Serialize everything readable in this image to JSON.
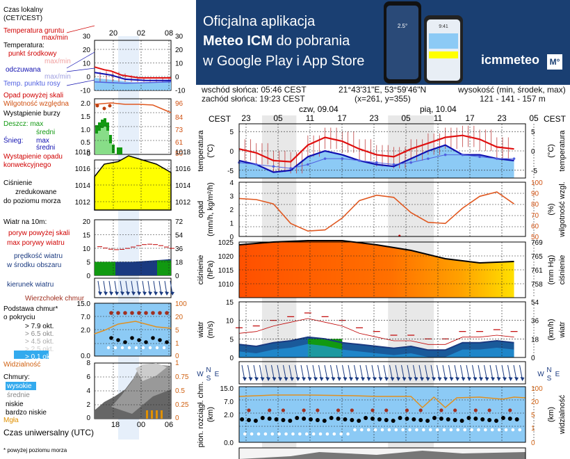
{
  "legend": {
    "local_time_label": "Czas lokalny",
    "local_time_zone": "(CET/CEST)",
    "local_time_ticks": [
      "20",
      "02",
      "08"
    ],
    "soil_temp_label": "Temperatura gruntu",
    "soil_temp_minmax": "max/min",
    "temperature_label": "Temperatura:",
    "temp_mid_label": "punkt środkowy",
    "temp_mid_minmax": "max/min",
    "feels_label": "odczuwana",
    "feels_minmax": "max/min",
    "dew_label": "Temp. punktu rosy",
    "temp_ticks_left": [
      "30",
      "20",
      "10",
      "0",
      "-10"
    ],
    "temp_ticks_right": [
      "30",
      "20",
      "10",
      "0",
      "-10"
    ],
    "precip_above_label": "Opad powyżej skali",
    "humidity_label": "Wilgotność względna",
    "storm_label": "Wystąpienie burzy",
    "rain_label": "Deszcz: max",
    "rain_mid": "średni",
    "snow_label": "Śnieg:",
    "snow_max": "max",
    "snow_mid": "średni",
    "precip_occur_1": "Wystąpienie opadu",
    "precip_occur_2": "konwekcyjnego",
    "precip_ticks_left": [
      "2.0",
      "1.5",
      "1.0",
      "0.5",
      "0"
    ],
    "precip_ticks_right": [
      "96",
      "84",
      "73",
      "61",
      "50"
    ],
    "pressure_1": "Ciśnienie",
    "pressure_2": "zredukowane",
    "pressure_3": "do poziomu morza",
    "pressure_ticks_left": [
      "1018",
      "1016",
      "1014",
      "1012"
    ],
    "pressure_ticks_right": [
      "1018",
      "1016",
      "1014",
      "1012"
    ],
    "wind_title": "Wiatr na 10m:",
    "gust_above_label": "poryw powyżej skali",
    "gust_max_label": "max porywy wiatru",
    "wind_speed_1": "prędkość wiatru",
    "wind_speed_2": "w środku obszaru",
    "wind_ticks_left": [
      "20",
      "15",
      "10",
      "5",
      "0"
    ],
    "wind_ticks_right": [
      "72",
      "54",
      "36",
      "18",
      "0"
    ],
    "wind_dir_label": "kierunek wiatru",
    "cloud_top_label": "Wierzchołek chmur",
    "cloud_base_1": "Podstawa chmur*",
    "cloud_base_2": "o pokryciu",
    "okt_labels": [
      "> 7.9 okt.",
      "> 6.5 okt.",
      "> 4.5 okt.",
      "> 2.5 okt.",
      "> 0.1 okt."
    ],
    "visibility_label": "Widzialność",
    "cloud_ticks_left": [
      "15.0",
      "7.0",
      "2.0",
      "0.0"
    ],
    "cloud_ticks_right": [
      "100",
      "20",
      "5",
      "1",
      "0"
    ],
    "clouds_label": "Chmury:",
    "cloud_high": "wysokie",
    "cloud_mid": "średnie",
    "cloud_low": "niskie",
    "cloud_vlow": "bardzo niskie",
    "fog_label": "Mgła",
    "cover_ticks_left": [
      "8",
      "6",
      "4",
      "2",
      "0"
    ],
    "cover_ticks_right": [
      "1",
      "0.75",
      "0.5",
      "0.25",
      "0"
    ],
    "utc_ticks": [
      "18",
      "00",
      "06"
    ],
    "utc_label": "Czas uniwersalny (UTC)",
    "footnote": "* powyżej poziomu morza"
  },
  "banner": {
    "line1": "Oficjalna aplikacja",
    "line2_bold": "Meteo ICM",
    "line2_rest": " do pobrania",
    "line3": "w Google Play i App Store",
    "logo_text": "icmmeteo",
    "logo_badge": "M°",
    "phone_time": "9:41",
    "phone_temp": "2.5°"
  },
  "info": {
    "sunrise": "wschód słońca: 05:46 CEST",
    "sunset": "zachód słońca: 19:23 CEST",
    "coords": "21°43'31\"E, 53°59'46\"N",
    "grid": "(x=261, y=355)",
    "elev_label": "wysokość (min, środek, max)",
    "elev_values": "121 - 141 - 157 m"
  },
  "main": {
    "tz": "CEST",
    "day1": "czw, 09.04",
    "day2": "pią, 10.04",
    "hour_ticks": [
      "23",
      "05",
      "11",
      "17",
      "23",
      "05",
      "11",
      "17",
      "23",
      "05"
    ],
    "temp_label_l": "temperatura",
    "temp_unit_l": "(°C)",
    "temp_label_r": "temperatura",
    "temp_unit_r": "(°C)",
    "temp_ticks": [
      "5",
      "0",
      "-5"
    ],
    "precip_label_l": "opad",
    "precip_unit_l": "(mm/h, kg/m²/h)",
    "precip_label_r": "wilgotność wzgl.",
    "precip_unit_r": "(%)",
    "precip_ticks_l": [
      "4",
      "3",
      "2",
      "1",
      "0"
    ],
    "humid_ticks": [
      "100",
      "90",
      "80",
      "70",
      "60",
      "50"
    ],
    "press_label_l": "ciśnienie",
    "press_unit_l": "(hPa)",
    "press_label_r": "ciśnienie",
    "press_unit_r": "(mm Hg)",
    "press_ticks_l": [
      "1025",
      "1020",
      "1015",
      "1010"
    ],
    "press_ticks_r": [
      "769",
      "765",
      "761",
      "758"
    ],
    "wind_label_l": "wiatr",
    "wind_unit_l": "(m/s)",
    "wind_label_r": "wiatr",
    "wind_unit_r": "(km/h)",
    "wind_ticks_l": [
      "15",
      "10",
      "5",
      "0"
    ],
    "wind_ticks_r": [
      "54",
      "36",
      "18",
      "0"
    ],
    "compass": {
      "n": "N",
      "s": "S",
      "w": "W",
      "e": "E"
    },
    "cloud_label_l": "pion. rozciągł. chm.",
    "cloud_unit_l": "(km)",
    "cloud_label_r": "widzialność",
    "cloud_unit_r": "(km)",
    "cloud_ticks_l": [
      "15.0",
      "7.0",
      "2.0",
      "0.0"
    ],
    "cloud_ticks_r": [
      "100",
      "20",
      "5",
      "1",
      "0"
    ]
  },
  "colors": {
    "banner_bg": "#1a3f72",
    "temp_red": "#e01010",
    "feels_blue": "#1010b0",
    "dew_blue": "#5060e0",
    "light_blue": "#8ccaf5",
    "humidity_orange": "#e05820",
    "pressure_yellow": "#ffff00",
    "wind_green": "#119911",
    "wind_navy": "#1a3a80",
    "gust_red": "#c00000"
  },
  "chart_data": [
    {
      "type": "line",
      "title": "temperatura",
      "ylabel": "(°C)",
      "x_hours": [
        21,
        24,
        27,
        30,
        33,
        36,
        39,
        42,
        45,
        48,
        51,
        54,
        57,
        60,
        63,
        66,
        69
      ],
      "ylim": [
        -7,
        7
      ],
      "series": [
        {
          "name": "temperatura",
          "values": [
            0.5,
            -0.5,
            -2.5,
            -2.8,
            1.5,
            3.5,
            2.5,
            0.5,
            -1,
            -1.5,
            0.5,
            2,
            3.5,
            4,
            3,
            1,
            0.5
          ]
        },
        {
          "name": "odczuwana",
          "values": [
            -2.5,
            -3.5,
            -5.5,
            -5,
            -1.5,
            0,
            -1,
            -2.5,
            -3.5,
            -4,
            -2,
            0,
            1.5,
            -1,
            -1,
            -2,
            -2.5
          ]
        },
        {
          "name": "Temp. punktu rosy",
          "values": [
            -3,
            -3.5,
            -4,
            -4.5,
            -3.5,
            -2,
            -2,
            -2.5,
            -3,
            -3.5,
            -3,
            -2,
            -1,
            -1,
            -1.5,
            -2,
            -2
          ]
        }
      ]
    },
    {
      "type": "line",
      "title": "opad / wilgotność wzgl.",
      "ylabel": "(mm/h, kg/m²/h)",
      "x_hours": [
        21,
        24,
        27,
        30,
        33,
        36,
        39,
        42,
        45,
        48,
        51,
        54,
        57,
        60,
        63,
        66,
        69
      ],
      "ylim": [
        0,
        4
      ],
      "series": [
        {
          "name": "wilgotność wzgl.",
          "values": [
            85,
            84,
            80,
            62,
            55,
            56,
            67,
            83,
            88,
            86,
            72,
            63,
            62,
            76,
            87,
            91,
            80
          ]
        }
      ]
    },
    {
      "type": "area",
      "title": "ciśnienie",
      "ylabel": "(hPa)",
      "x_hours": [
        21,
        27,
        33,
        39,
        45,
        51,
        57,
        63,
        69
      ],
      "ylim": [
        1005,
        1025
      ],
      "series": [
        {
          "name": "ciśnienie",
          "values": [
            1024,
            1025,
            1025.5,
            1025.5,
            1024,
            1022,
            1019,
            1017.5,
            1018
          ]
        }
      ]
    },
    {
      "type": "area",
      "title": "wiatr",
      "ylabel": "(m/s)",
      "x_hours": [
        21,
        24,
        27,
        30,
        33,
        36,
        39,
        42,
        45,
        48,
        51,
        54,
        57,
        60,
        63,
        66,
        69
      ],
      "ylim": [
        0,
        15
      ],
      "series": [
        {
          "name": "wiatr",
          "values": [
            3.5,
            3,
            4,
            4.5,
            5.5,
            5,
            4,
            3.5,
            3,
            2.5,
            3,
            2,
            2,
            4,
            4,
            4.5,
            4
          ]
        },
        {
          "name": "porywy",
          "values": [
            8,
            8.5,
            10,
            11,
            12,
            11,
            10,
            8,
            7,
            6,
            6,
            5,
            5,
            7,
            7,
            7.5,
            7
          ]
        }
      ]
    }
  ]
}
